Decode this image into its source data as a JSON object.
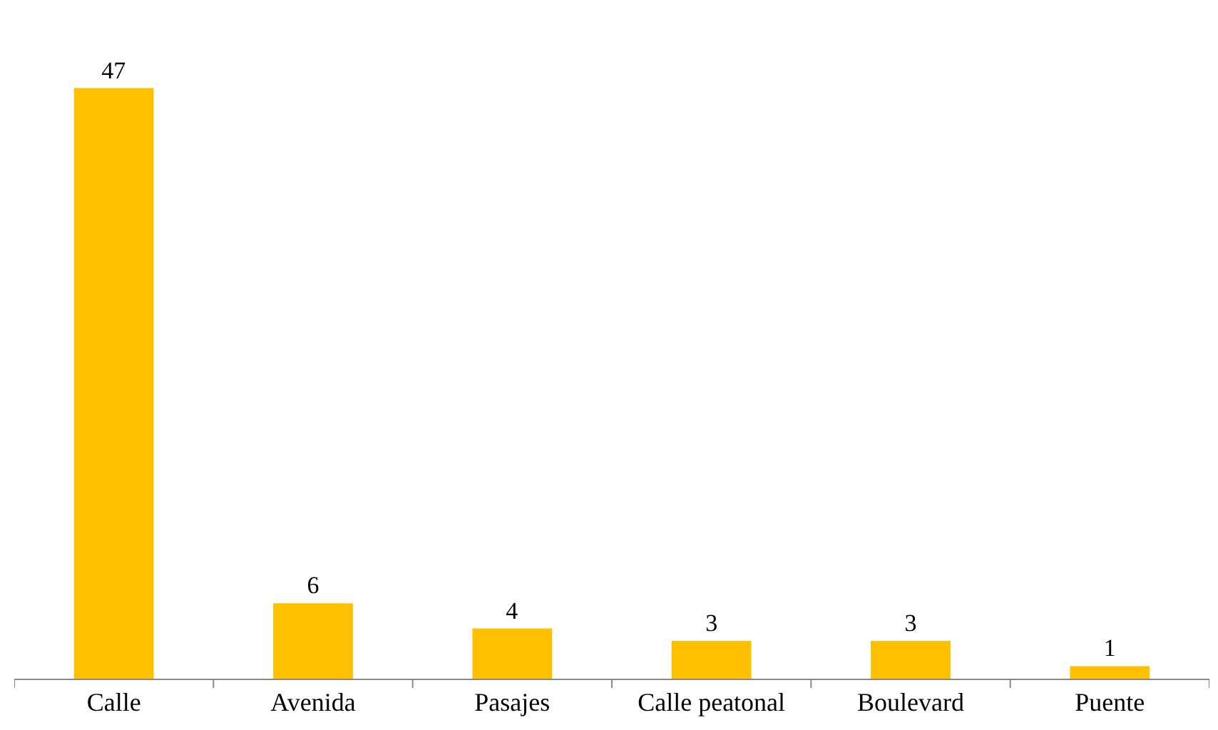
{
  "chart_data": {
    "type": "bar",
    "categories": [
      "Calle",
      "Avenida",
      "Pasajes",
      "Calle peatonal",
      "Boulevard",
      "Puente"
    ],
    "values": [
      47,
      6,
      4,
      3,
      3,
      1
    ],
    "color": "#ffc000",
    "data_labels": true,
    "grid": false,
    "legend": false
  }
}
